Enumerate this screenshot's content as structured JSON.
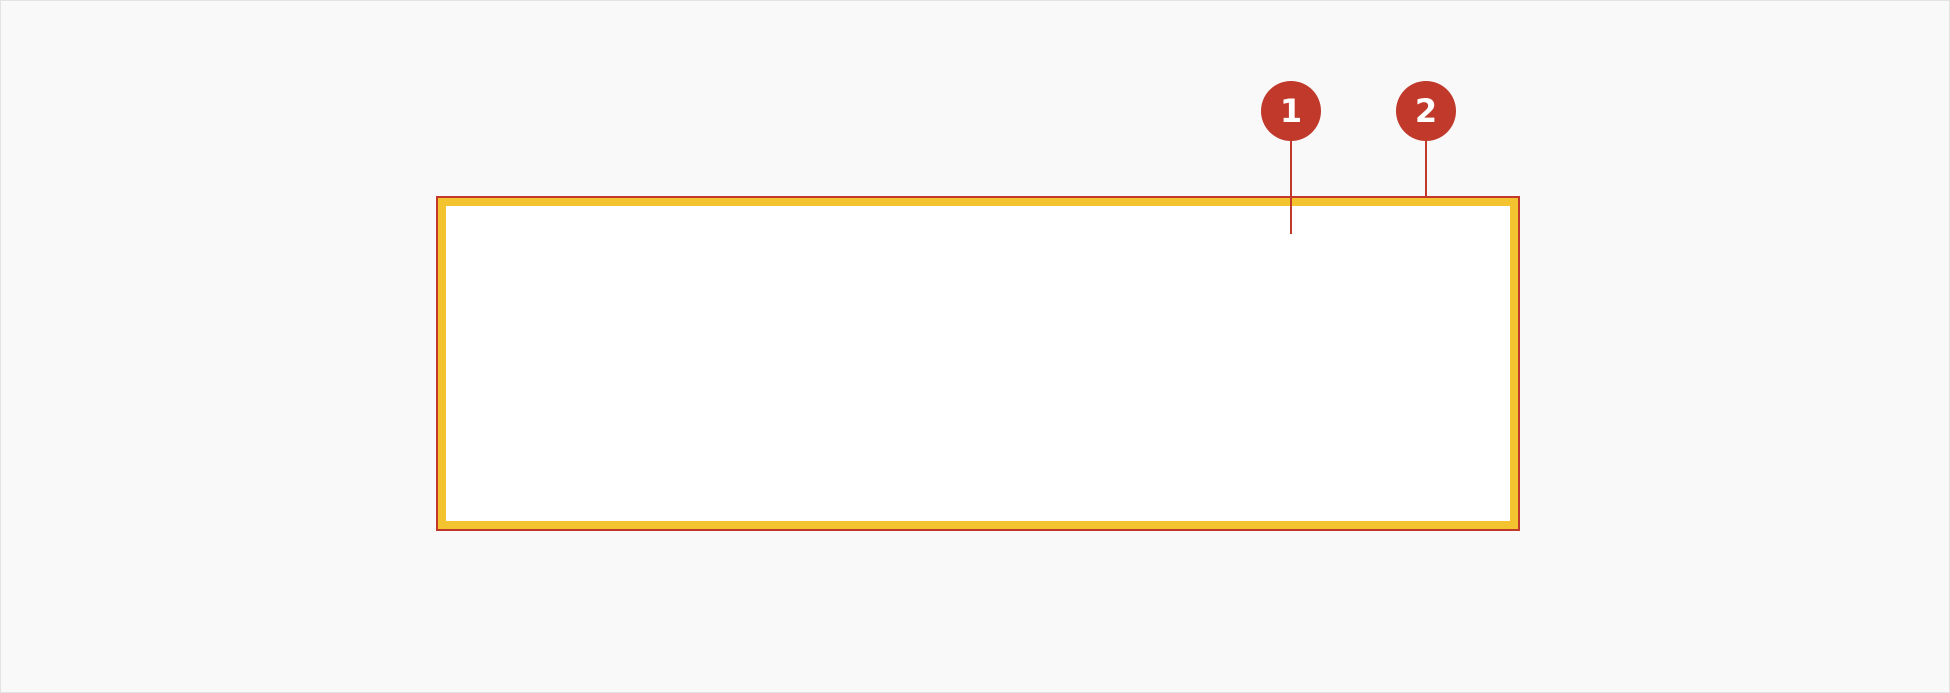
{
  "colors": {
    "background": "#f9f9f9",
    "outer_border": "#c0392b",
    "padding_fill": "#f4c430",
    "content_fill": "#ffffff",
    "marker": "#c0392b",
    "marker_text": "#ffffff"
  },
  "markers": [
    {
      "label": "1"
    },
    {
      "label": "2"
    }
  ]
}
